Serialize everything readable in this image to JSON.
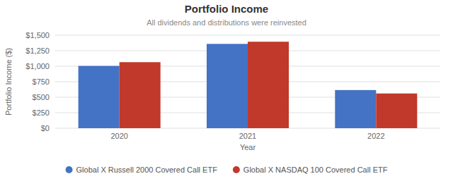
{
  "chart_data": {
    "type": "bar",
    "title": "Portfolio Income",
    "subtitle": "All dividends and distributions were reinvested",
    "xlabel": "Year",
    "ylabel": "Portfolio Income ($)",
    "categories": [
      "2020",
      "2021",
      "2022"
    ],
    "series": [
      {
        "name": "Global X Russell 2000 Covered Call ETF",
        "color": "#4472C4",
        "values": [
          1005,
          1360,
          615
        ]
      },
      {
        "name": "Global X NASDAQ 100 Covered Call ETF",
        "color": "#C0392B",
        "values": [
          1065,
          1395,
          560
        ]
      }
    ],
    "ylim": [
      0,
      1500
    ],
    "yticks": [
      {
        "value": 0,
        "label": "$0"
      },
      {
        "value": 250,
        "label": "$250"
      },
      {
        "value": 500,
        "label": "$500"
      },
      {
        "value": 750,
        "label": "$750"
      },
      {
        "value": 1000,
        "label": "$1,000"
      },
      {
        "value": 1250,
        "label": "$1,250"
      },
      {
        "value": 1500,
        "label": "$1,500"
      }
    ],
    "grid": true,
    "legend": "bottom"
  }
}
